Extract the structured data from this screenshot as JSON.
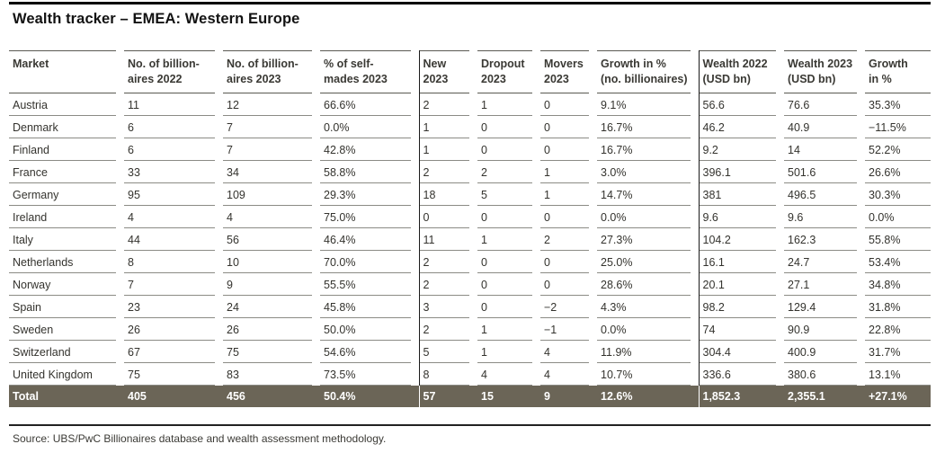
{
  "title": "Wealth tracker – EMEA: Western Europe",
  "source": "Source: UBS/PwC Billionaires database and wealth assessment methodology.",
  "colors": {
    "total_row_bg": "#6b6557",
    "total_row_text": "#ffffff",
    "row_separator": "#8b8b85",
    "header_rule": "#5a5952",
    "group_divider": "#1b1b1b",
    "top_rule": "#000000"
  },
  "table": {
    "columns": [
      {
        "label": "Market"
      },
      {
        "label": "No. of billion-\naires 2022"
      },
      {
        "label": "No. of billion-\naires 2023"
      },
      {
        "label": "% of self-\nmades 2023"
      },
      {
        "label": "New\n2023"
      },
      {
        "label": "Dropout\n2023"
      },
      {
        "label": "Movers\n2023"
      },
      {
        "label": "Growth in %\n(no. billionaires)"
      },
      {
        "label": "Wealth 2022\n(USD bn)"
      },
      {
        "label": "Wealth 2023\n(USD bn)"
      },
      {
        "label": "Growth\nin %"
      }
    ],
    "rows": [
      {
        "market": "Austria",
        "values": [
          "11",
          "12",
          "66.6%",
          "2",
          "1",
          "0",
          "9.1%",
          "56.6",
          "76.6",
          "35.3%"
        ]
      },
      {
        "market": "Denmark",
        "values": [
          "6",
          "7",
          "0.0%",
          "1",
          "0",
          "0",
          "16.7%",
          "46.2",
          "40.9",
          "−11.5%"
        ]
      },
      {
        "market": "Finland",
        "values": [
          "6",
          "7",
          "42.8%",
          "1",
          "0",
          "0",
          "16.7%",
          "9.2",
          "14",
          "52.2%"
        ]
      },
      {
        "market": "France",
        "values": [
          "33",
          "34",
          "58.8%",
          "2",
          "2",
          "1",
          "3.0%",
          "396.1",
          "501.6",
          "26.6%"
        ]
      },
      {
        "market": "Germany",
        "values": [
          "95",
          "109",
          "29.3%",
          "18",
          "5",
          "1",
          "14.7%",
          "381",
          "496.5",
          "30.3%"
        ]
      },
      {
        "market": "Ireland",
        "values": [
          "4",
          "4",
          "75.0%",
          "0",
          "0",
          "0",
          "0.0%",
          "9.6",
          "9.6",
          "0.0%"
        ]
      },
      {
        "market": "Italy",
        "values": [
          "44",
          "56",
          "46.4%",
          "11",
          "1",
          "2",
          "27.3%",
          "104.2",
          "162.3",
          "55.8%"
        ]
      },
      {
        "market": "Netherlands",
        "values": [
          "8",
          "10",
          "70.0%",
          "2",
          "0",
          "0",
          "25.0%",
          "16.1",
          "24.7",
          "53.4%"
        ]
      },
      {
        "market": "Norway",
        "values": [
          "7",
          "9",
          "55.5%",
          "2",
          "0",
          "0",
          "28.6%",
          "20.1",
          "27.1",
          "34.8%"
        ]
      },
      {
        "market": "Spain",
        "values": [
          "23",
          "24",
          "45.8%",
          "3",
          "0",
          "−2",
          "4.3%",
          "98.2",
          "129.4",
          "31.8%"
        ]
      },
      {
        "market": "Sweden",
        "values": [
          "26",
          "26",
          "50.0%",
          "2",
          "1",
          "−1",
          "0.0%",
          "74",
          "90.9",
          "22.8%"
        ]
      },
      {
        "market": "Switzerland",
        "values": [
          "67",
          "75",
          "54.6%",
          "5",
          "1",
          "4",
          "11.9%",
          "304.4",
          "400.9",
          "31.7%"
        ]
      },
      {
        "market": "United Kingdom",
        "values": [
          "75",
          "83",
          "73.5%",
          "8",
          "4",
          "4",
          "10.7%",
          "336.6",
          "380.6",
          "13.1%"
        ]
      }
    ],
    "total": {
      "market": "Total",
      "values": [
        "405",
        "456",
        "50.4%",
        "57",
        "15",
        "9",
        "12.6%",
        "1,852.3",
        "2,355.1",
        "+27.1%"
      ]
    }
  }
}
